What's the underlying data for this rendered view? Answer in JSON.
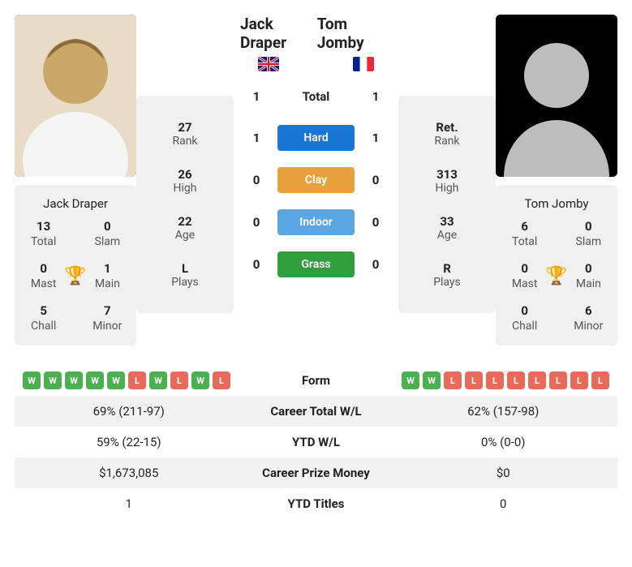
{
  "p1": {
    "name": "Jack Draper",
    "country": "GB",
    "rank": "27",
    "rank_label": "Rank",
    "high": "26",
    "high_label": "High",
    "age": "22",
    "age_label": "Age",
    "plays": "L",
    "plays_label": "Plays",
    "career": {
      "total_v": "13",
      "total_l": "Total",
      "slam_v": "0",
      "slam_l": "Slam",
      "mast_v": "0",
      "mast_l": "Mast",
      "main_v": "1",
      "main_l": "Main",
      "chall_v": "5",
      "chall_l": "Chall",
      "minor_v": "7",
      "minor_l": "Minor"
    },
    "form": [
      "W",
      "W",
      "W",
      "W",
      "W",
      "L",
      "W",
      "L",
      "W",
      "L"
    ]
  },
  "p2": {
    "name": "Tom Jomby",
    "country": "FR",
    "rank": "Ret.",
    "rank_label": "Rank",
    "high": "313",
    "high_label": "High",
    "age": "33",
    "age_label": "Age",
    "plays": "R",
    "plays_label": "Plays",
    "career": {
      "total_v": "6",
      "total_l": "Total",
      "slam_v": "0",
      "slam_l": "Slam",
      "mast_v": "0",
      "mast_l": "Mast",
      "main_v": "0",
      "main_l": "Main",
      "chall_v": "0",
      "chall_l": "Chall",
      "minor_v": "6",
      "minor_l": "Minor"
    },
    "form": [
      "W",
      "W",
      "L",
      "L",
      "L",
      "L",
      "L",
      "L",
      "L",
      "L"
    ]
  },
  "h2h": {
    "total_label": "Total",
    "total_p1": "1",
    "total_p2": "1",
    "hard_label": "Hard",
    "hard_p1": "1",
    "hard_p2": "1",
    "clay_label": "Clay",
    "clay_p1": "0",
    "clay_p2": "0",
    "indoor_label": "Indoor",
    "indoor_p1": "0",
    "indoor_p2": "0",
    "grass_label": "Grass",
    "grass_p1": "0",
    "grass_p2": "0"
  },
  "rows": {
    "form_label": "Form",
    "career_wl_label": "Career Total W/L",
    "career_wl_p1": "69% (211-97)",
    "career_wl_p2": "62% (157-98)",
    "ytd_wl_label": "YTD W/L",
    "ytd_wl_p1": "59% (22-15)",
    "ytd_wl_p2": "0% (0-0)",
    "prize_label": "Career Prize Money",
    "prize_p1": "$1,673,085",
    "prize_p2": "$0",
    "ytd_titles_label": "YTD Titles",
    "ytd_titles_p1": "1",
    "ytd_titles_p2": "0"
  }
}
